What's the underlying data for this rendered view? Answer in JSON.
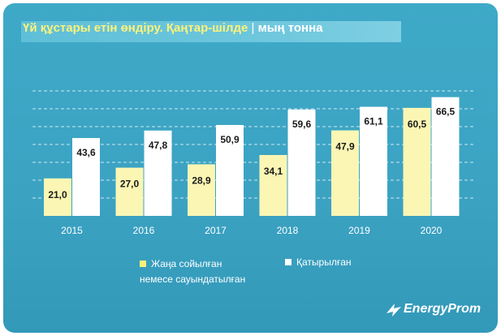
{
  "title": {
    "main": "Үй құстары етін өндіру. Қаңтар-шілде",
    "separator": "|",
    "unit": "мың тонна"
  },
  "chart_data": {
    "type": "bar",
    "categories": [
      "2015",
      "2016",
      "2017",
      "2018",
      "2019",
      "2020"
    ],
    "series": [
      {
        "name": "Жаңа сойылған немесе сауындатылған",
        "values": [
          21.0,
          27.0,
          28.9,
          34.1,
          47.9,
          60.5
        ],
        "labels": [
          "21,0",
          "27,0",
          "28,9",
          "34,1",
          "47,9",
          "60,5"
        ],
        "color": "#fbf6b4"
      },
      {
        "name": "Қатырылған",
        "values": [
          43.6,
          47.8,
          50.9,
          59.6,
          61.1,
          66.5
        ],
        "labels": [
          "43,6",
          "47,8",
          "50,9",
          "59,6",
          "61,1",
          "66,5"
        ],
        "color": "#ffffff"
      }
    ],
    "ylim": [
      0,
      80
    ],
    "grid": true,
    "legend_position": "bottom"
  },
  "legend": {
    "series_a_line1": "Жаңа сойылған",
    "series_a_line2": "немесе сауындатылған",
    "series_b": "Қатырылған"
  },
  "brand": {
    "name": "EnergyProm"
  }
}
